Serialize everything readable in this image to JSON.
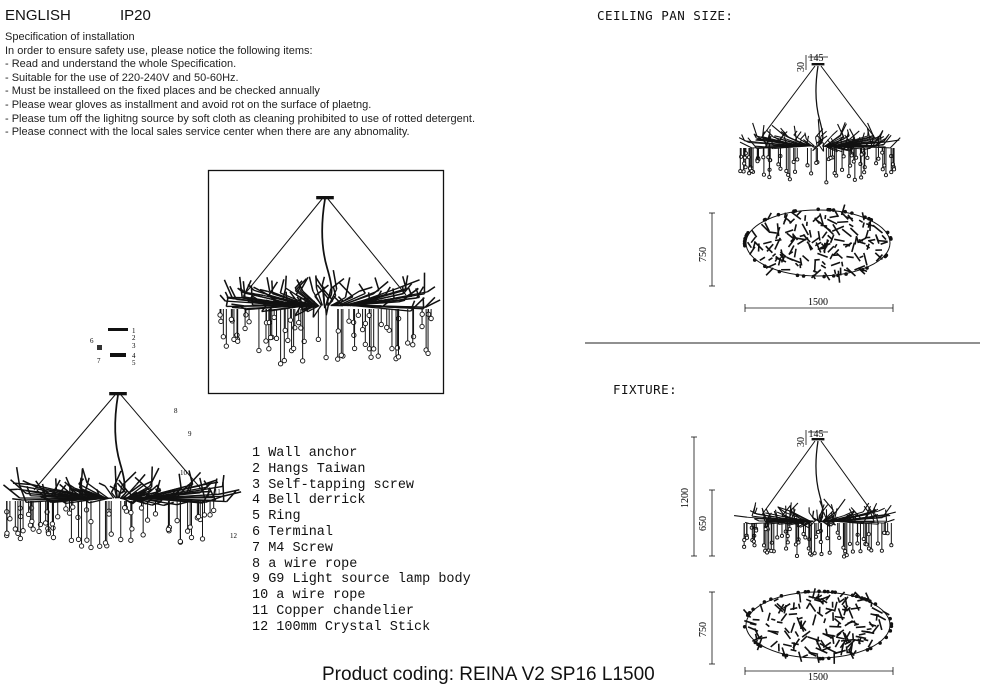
{
  "header": {
    "language": "ENGLISH",
    "ip_rating": "IP20"
  },
  "specification": {
    "title": "Specification of installation",
    "intro": "In order to ensure safety use, please notice the following items:",
    "items": [
      "- Read and understand the whole Specification.",
      "- Suitable for the use of 220-240V and 50-60Hz.",
      "- Must be installeed on the fixed places and be checked annually",
      "- Please wear gloves as installment and avoid rot on the surface of plaetng.",
      "- Please tum off the lighitng source by soft cloth as cleaning prohibited to use of rotted detergent.",
      "- Please connect with the local sales service center when there are any abnomality."
    ]
  },
  "exploded_diagram": {
    "callouts": [
      "1",
      "2",
      "3",
      "4",
      "5",
      "6",
      "7",
      "8",
      "9",
      "10",
      "11",
      "12"
    ]
  },
  "parts_list": [
    "1 Wall anchor",
    "2 Hangs Taiwan",
    "3 Self-tapping screw",
    "4 Bell derrick",
    "5 Ring",
    "6 Terminal",
    "7 M4 Screw",
    "8 a wire rope",
    "9 G9 Light source lamp body",
    "10 a wire rope",
    "11 Copper chandelier",
    "12 100mm Crystal Stick"
  ],
  "ceiling_pan": {
    "title": "CEILING PAN SIZE:",
    "pan_width": "145",
    "pan_height": "30",
    "depth": "750",
    "width": "1500"
  },
  "fixture": {
    "title": "FIXTURE:",
    "pan_width": "145",
    "pan_height": "30",
    "total_height": "1200",
    "body_height": "650",
    "depth": "750",
    "width": "1500"
  },
  "product_coding": "Product coding: REINA V2 SP16 L1500"
}
